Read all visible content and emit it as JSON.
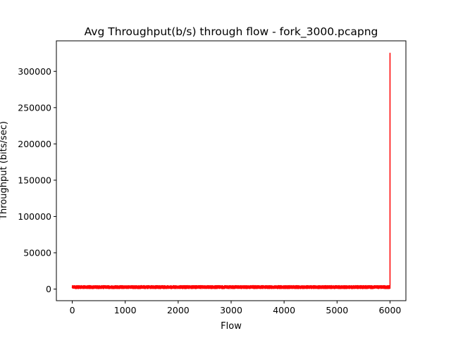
{
  "chart_data": {
    "type": "line",
    "title": "Avg Throughput(b/s) through flow - fork_3000.pcapng",
    "xlabel": "Flow",
    "ylabel": "Throughput (bits/sec)",
    "xlim": [
      -300,
      6300
    ],
    "ylim": [
      -16000,
      342000
    ],
    "xticks": [
      0,
      1000,
      2000,
      3000,
      4000,
      5000,
      6000
    ],
    "yticks": [
      0,
      50000,
      100000,
      150000,
      200000,
      250000,
      300000
    ],
    "grid": false,
    "legend": "none",
    "series": [
      {
        "color": "#ff0000",
        "points_total": 6000,
        "baseline_range": [
          0,
          6000
        ],
        "noise_band": [
          600,
          4800
        ],
        "noise_band_note_removed": true,
        "spike": {
          "x": 6000,
          "y": 325000
        }
      }
    ]
  }
}
